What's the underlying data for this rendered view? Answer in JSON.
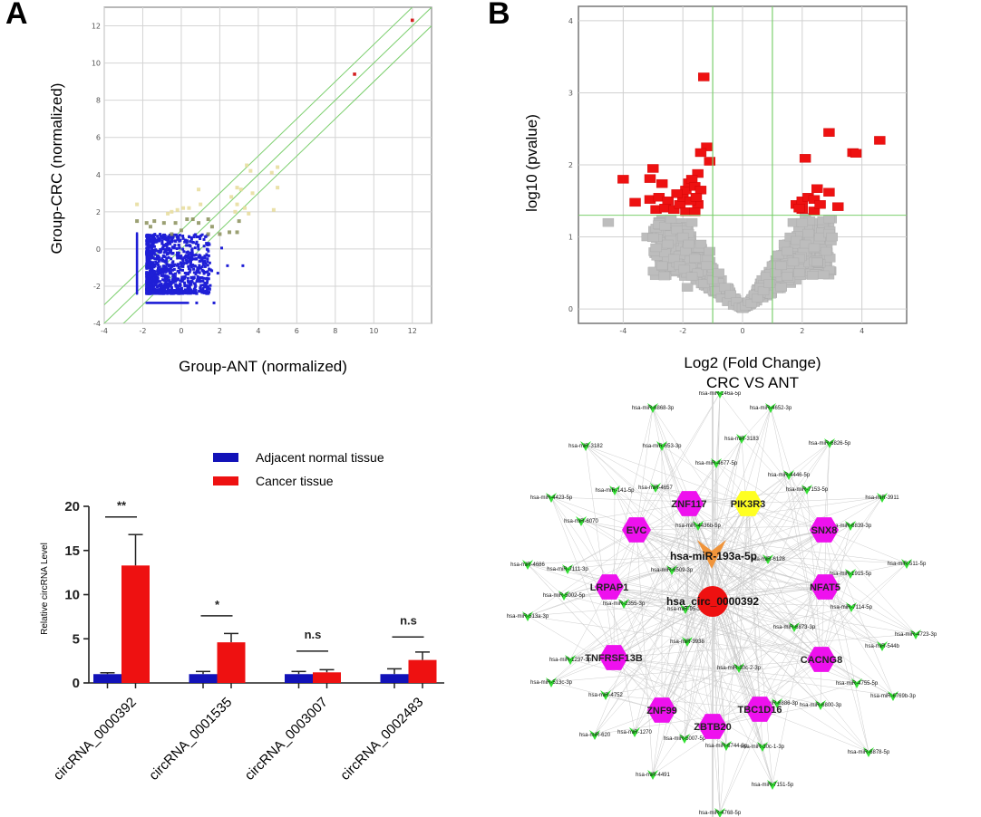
{
  "panels": {
    "A": "A",
    "B": "B"
  },
  "chart_data": [
    {
      "id": "scatter",
      "type": "scatter",
      "title": "",
      "xlabel": "Group-ANT (normalized)",
      "ylabel": "Group-CRC (normalized)",
      "xlim": [
        -4,
        13
      ],
      "ylim": [
        -4,
        13
      ],
      "xticks": [
        -4,
        -2,
        0,
        2,
        4,
        6,
        8,
        10,
        12
      ],
      "yticks": [
        -4,
        -2,
        0,
        2,
        4,
        6,
        8,
        10,
        12
      ],
      "grid": true,
      "reference_lines": [
        {
          "offset": 1
        },
        {
          "offset": 0
        },
        {
          "offset": -1
        }
      ],
      "reference_color": "#7ccf6e",
      "colors": {
        "low": "#1f1fd6",
        "mid": "#8a8f5a",
        "high": "#e6dc9a",
        "top": "#d42020"
      },
      "highlight_points": [
        [
          12.0,
          12.3
        ],
        [
          9.0,
          9.4
        ]
      ],
      "mid_points": [
        [
          3.4,
          4.5
        ],
        [
          3.6,
          4.2
        ],
        [
          4.7,
          4.1
        ],
        [
          5.0,
          4.4
        ],
        [
          0.9,
          3.2
        ],
        [
          2.9,
          3.3
        ],
        [
          3.1,
          3.2
        ],
        [
          3.7,
          3.0
        ],
        [
          5.0,
          3.3
        ],
        [
          2.6,
          2.8
        ],
        [
          2.9,
          2.4
        ],
        [
          1.0,
          2.4
        ],
        [
          -2.3,
          2.4
        ],
        [
          -0.7,
          1.9
        ],
        [
          -0.5,
          2.0
        ],
        [
          -0.2,
          2.1
        ],
        [
          0.1,
          2.2
        ],
        [
          0.4,
          2.2
        ],
        [
          3.3,
          2.2
        ],
        [
          3.5,
          1.9
        ],
        [
          4.8,
          2.1
        ],
        [
          2.8,
          2.0
        ],
        [
          0.3,
          1.6
        ],
        [
          0.6,
          1.6
        ],
        [
          1.4,
          1.6
        ],
        [
          -2.3,
          1.5
        ],
        [
          -1.8,
          1.4
        ],
        [
          -1.4,
          1.5
        ],
        [
          -0.9,
          1.4
        ],
        [
          -0.3,
          1.4
        ],
        [
          0.9,
          1.4
        ],
        [
          3.0,
          1.5
        ],
        [
          1.6,
          1.2
        ],
        [
          -1.6,
          1.2
        ],
        [
          0.0,
          1.0
        ],
        [
          2.0,
          0.8
        ],
        [
          2.5,
          0.9
        ],
        [
          2.9,
          0.9
        ],
        [
          1.4,
          0.8
        ],
        [
          -0.5,
          0.8
        ]
      ],
      "low_points_summary": "dense cluster x in [-2.3, 2.2], y in [-2.9, 0.9]",
      "low_outliers": [
        [
          2.4,
          -0.9
        ],
        [
          3.2,
          -0.9
        ],
        [
          2.1,
          0.05
        ],
        [
          1.9,
          -1.3
        ],
        [
          1.4,
          -1.4
        ],
        [
          1.7,
          -2.9
        ],
        [
          0.8,
          -2.9
        ],
        [
          1.0,
          -2.2
        ],
        [
          0.5,
          -2.3
        ],
        [
          -0.2,
          -2.3
        ]
      ]
    },
    {
      "id": "volcano",
      "type": "scatter",
      "title": "",
      "xlabel": "Log2 (Fold Change)",
      "xlabel2": "CRC VS ANT",
      "ylabel": "log10 (pvalue)",
      "xlim": [
        -5.5,
        5.5
      ],
      "ylim": [
        -0.2,
        4.2
      ],
      "xticks": [
        -4,
        -2,
        0,
        2,
        4
      ],
      "yticks": [
        0,
        1,
        2,
        3,
        4
      ],
      "grid": true,
      "thresholds": {
        "fold_change_x": [
          -1,
          1
        ],
        "pvalue_y": 1.3
      },
      "threshold_color": "#7ccf6e",
      "colors": {
        "significant": "#ee1111",
        "not_significant": "#bdbdbd"
      },
      "significant_points": [
        [
          -1.3,
          3.22
        ],
        [
          -1.2,
          2.25
        ],
        [
          -1.4,
          2.17
        ],
        [
          -1.1,
          2.05
        ],
        [
          -1.5,
          1.88
        ],
        [
          -3.0,
          1.95
        ],
        [
          -4.0,
          1.8
        ],
        [
          -3.1,
          1.81
        ],
        [
          -2.7,
          1.74
        ],
        [
          -3.6,
          1.48
        ],
        [
          -3.1,
          1.52
        ],
        [
          -2.8,
          1.55
        ],
        [
          -2.5,
          1.5
        ],
        [
          -2.9,
          1.38
        ],
        [
          -2.6,
          1.4
        ],
        [
          -2.3,
          1.38
        ],
        [
          -2.1,
          1.45
        ],
        [
          -2.0,
          1.55
        ],
        [
          -1.9,
          1.65
        ],
        [
          -1.8,
          1.75
        ],
        [
          -1.7,
          1.8
        ],
        [
          -1.6,
          1.7
        ],
        [
          -1.4,
          1.65
        ],
        [
          -1.5,
          1.45
        ],
        [
          -1.9,
          1.35
        ],
        [
          -1.6,
          1.35
        ],
        [
          -2.2,
          1.6
        ],
        [
          -1.75,
          1.5
        ],
        [
          -1.55,
          1.55
        ],
        [
          2.9,
          2.45
        ],
        [
          4.6,
          2.34
        ],
        [
          3.7,
          2.17
        ],
        [
          3.8,
          2.16
        ],
        [
          2.1,
          2.09
        ],
        [
          2.5,
          1.67
        ],
        [
          2.9,
          1.62
        ],
        [
          3.2,
          1.42
        ],
        [
          1.8,
          1.45
        ],
        [
          2.0,
          1.5
        ],
        [
          2.2,
          1.55
        ],
        [
          2.4,
          1.52
        ],
        [
          2.0,
          1.38
        ],
        [
          2.4,
          1.36
        ],
        [
          2.6,
          1.45
        ],
        [
          1.9,
          1.4
        ]
      ],
      "nonsignificant_summary": "V-shaped cloud from (0,0) rising to about 1.3 at |x|≈2-3",
      "nonsignificant_points": [
        [
          -4.5,
          1.2
        ],
        [
          -3.2,
          1.0
        ],
        [
          -3.0,
          0.99
        ],
        [
          -2.9,
          0.85
        ],
        [
          -2.7,
          0.6
        ],
        [
          -2.6,
          1.15
        ],
        [
          -2.4,
          1.25
        ],
        [
          -2.2,
          1.1
        ],
        [
          -2.0,
          1.0
        ],
        [
          -1.9,
          0.8
        ],
        [
          -1.8,
          0.9
        ],
        [
          -1.7,
          1.2
        ],
        [
          -1.6,
          0.7
        ],
        [
          -1.5,
          0.5
        ],
        [
          -1.4,
          0.9
        ],
        [
          -1.3,
          0.35
        ],
        [
          -1.2,
          0.6
        ],
        [
          -1.1,
          0.8
        ],
        [
          -1.0,
          0.4
        ],
        [
          -0.9,
          0.25
        ],
        [
          -0.8,
          0.5
        ],
        [
          -0.7,
          0.15
        ],
        [
          -0.6,
          0.3
        ],
        [
          -0.5,
          0.1
        ],
        [
          -0.4,
          0.2
        ],
        [
          -0.3,
          0.05
        ],
        [
          -0.2,
          0.1
        ],
        [
          -0.1,
          0.03
        ],
        [
          0.0,
          0.02
        ],
        [
          0.1,
          0.04
        ],
        [
          0.2,
          0.1
        ],
        [
          0.3,
          0.08
        ],
        [
          0.4,
          0.2
        ],
        [
          0.5,
          0.15
        ],
        [
          0.6,
          0.3
        ],
        [
          0.7,
          0.25
        ],
        [
          0.8,
          0.45
        ],
        [
          0.9,
          0.35
        ],
        [
          1.0,
          0.6
        ],
        [
          1.1,
          0.5
        ],
        [
          1.2,
          0.75
        ],
        [
          1.3,
          0.6
        ],
        [
          1.4,
          0.9
        ],
        [
          1.5,
          0.8
        ],
        [
          1.6,
          1.0
        ],
        [
          1.7,
          1.2
        ],
        [
          1.8,
          0.95
        ],
        [
          1.9,
          0.7
        ],
        [
          2.0,
          1.2
        ],
        [
          2.1,
          0.9
        ],
        [
          2.2,
          1.05
        ],
        [
          2.4,
          0.85
        ],
        [
          2.5,
          0.65
        ],
        [
          2.6,
          1.0
        ],
        [
          2.8,
          0.8
        ],
        [
          2.9,
          1.05
        ],
        [
          3.0,
          1.0
        ],
        [
          2.9,
          1.25
        ],
        [
          -2.5,
          0.9
        ],
        [
          -2.3,
          0.7
        ],
        [
          -2.1,
          0.6
        ],
        [
          -1.95,
          0.55
        ],
        [
          -1.7,
          0.45
        ],
        [
          -1.85,
          0.3
        ],
        [
          1.5,
          0.45
        ],
        [
          1.7,
          0.65
        ],
        [
          1.3,
          0.3
        ],
        [
          1.9,
          0.5
        ]
      ]
    },
    {
      "id": "bar",
      "type": "bar",
      "title": "",
      "xlabel": "",
      "ylabel": "Relative circRNA Level",
      "ylim": [
        0,
        20
      ],
      "yticks": [
        0,
        5,
        10,
        15,
        20
      ],
      "categories": [
        "circRNA_0000392",
        "circRNA_0001535",
        "circRNA_0003007",
        "circRNA_0002483"
      ],
      "series": [
        {
          "name": "Adjacent normal tissue",
          "color": "#1212b8",
          "values": [
            1.0,
            1.0,
            1.0,
            1.0
          ],
          "errors": [
            0.15,
            0.3,
            0.3,
            0.6
          ]
        },
        {
          "name": "Cancer tissue",
          "color": "#ee1111",
          "values": [
            13.3,
            4.6,
            1.2,
            2.6
          ],
          "errors": [
            3.5,
            1.0,
            0.3,
            0.9
          ]
        }
      ],
      "significance": [
        "**",
        "*",
        "n.s",
        "n.s"
      ],
      "legend": "top-right"
    }
  ],
  "network": {
    "hub": {
      "label": "hsa_circ_0000392",
      "color": "#ee1111"
    },
    "mirna": {
      "label": "hsa-miR-193a-5p",
      "color": "#f0943a"
    },
    "genes": [
      {
        "label": "ZNF117",
        "color": "#ee11ee"
      },
      {
        "label": "PIK3R3",
        "color": "#ffff22"
      },
      {
        "label": "EVC",
        "color": "#ee11ee"
      },
      {
        "label": "SNX8",
        "color": "#ee11ee"
      },
      {
        "label": "LRPAP1",
        "color": "#ee11ee"
      },
      {
        "label": "NFAT5",
        "color": "#ee11ee"
      },
      {
        "label": "TNFRSF13B",
        "color": "#ee11ee"
      },
      {
        "label": "CACNG8",
        "color": "#ee11ee"
      },
      {
        "label": "ZNF99",
        "color": "#ee11ee"
      },
      {
        "label": "TBC1D16",
        "color": "#ee11ee"
      },
      {
        "label": "ZBTB20",
        "color": "#ee11ee"
      }
    ],
    "mirna_color": "#33e033",
    "edge_color": "#c8c8c8",
    "mirnas": [
      "hsa-miR-146a-5p",
      "hsa-miR-6868-3p",
      "hsa-miR-4652-3p",
      "hsa-miR-3182",
      "hsa-miR-653-3p",
      "hsa-miR-3183",
      "hsa-miR-6826-5p",
      "hsa-miR-4677-5p",
      "hsa-miR-4657",
      "hsa-miR-141-5p",
      "hsa-miR-4446-5p",
      "hsa-miR-7153-5p",
      "hsa-miR-4423-5p",
      "hsa-miR-3911",
      "hsa-miR-6070",
      "hsa-miR-4436b-5p",
      "hsa-miR-6839-3p",
      "hsa-miR-4686",
      "hsa-miR-7111-3p",
      "hsa-miR-6509-3p",
      "hsa-miR-6128",
      "hsa-miR-511-5p",
      "hsa-miR-1915-5p",
      "hsa-miR-5002-5p",
      "hsa-miR-2355-3p",
      "hsa-miR-7114-5p",
      "hsa-miR-513a-3p",
      "hsa-miR-95-3p",
      "hsa-miR-6873-3p",
      "hsa-miR-4723-3p",
      "hsa-miR-544b",
      "hsa-miR-3938",
      "hsa-miR-1237-3p",
      "hsa-miR-30c-2-3p",
      "hsa-miR-4755-5p",
      "hsa-miR-513c-3p",
      "hsa-miR-6769b-3p",
      "hsa-miR-4752",
      "hsa-miR-6886-3p",
      "hsa-miR-6800-3p",
      "hsa-miR-620",
      "hsa-miR-1270",
      "hsa-miR-5007-5p",
      "hsa-miR-6744-3p",
      "hsa-miR-30c-1-3p",
      "hsa-miR-6878-5p",
      "hsa-miR-4491",
      "hsa-miR-7151-5p",
      "hsa-miR-4768-5p"
    ]
  }
}
